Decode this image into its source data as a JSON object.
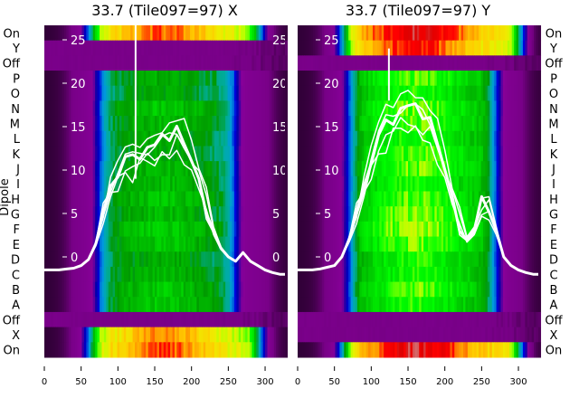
{
  "chart_data": [
    {
      "type": "heatmap",
      "title": "33.7 (Tile097=97) X",
      "ylabel": "Dipole",
      "xlabel": "",
      "xlim": [
        0,
        330
      ],
      "x_ticks": [
        "0",
        "50",
        "100",
        "150",
        "200",
        "250",
        "300"
      ],
      "rows": [
        "On",
        "Y",
        "Off",
        "P",
        "O",
        "N",
        "M",
        "L",
        "K",
        "J",
        "I",
        "H",
        "G",
        "F",
        "E",
        "D",
        "C",
        "B",
        "A",
        "Off",
        "X",
        "On"
      ],
      "row_peak_levels": [
        0.82,
        0.04,
        0.04,
        0.48,
        0.47,
        0.52,
        0.5,
        0.48,
        0.47,
        0.5,
        0.5,
        0.52,
        0.5,
        0.53,
        0.52,
        0.48,
        0.5,
        0.52,
        0.52,
        0.04,
        0.8,
        0.83
      ],
      "overlay_ylim": [
        -2,
        27
      ],
      "overlay_ticks": [
        "0",
        "5",
        "10",
        "15",
        "20",
        "25"
      ],
      "overlay_line": {
        "x": [
          0,
          10,
          20,
          30,
          40,
          50,
          60,
          70,
          80,
          90,
          100,
          110,
          120,
          130,
          140,
          150,
          160,
          170,
          180,
          190,
          200,
          210,
          220,
          230,
          240,
          250,
          260,
          270,
          280,
          290,
          300,
          310,
          320,
          330
        ],
        "y": [
          -1.5,
          -1.5,
          -1.5,
          -1.4,
          -1.3,
          -1,
          -0.3,
          1.5,
          5,
          8,
          9.5,
          10.5,
          11,
          12,
          12,
          12.5,
          13,
          13.5,
          14,
          13,
          11,
          9,
          6,
          3,
          1,
          0,
          -0.5,
          0.5,
          -0.5,
          -1,
          -1.5,
          -1.8,
          -2,
          -2
        ],
        "variants": [
          0.85,
          0.92,
          1,
          1.07,
          1.15
        ],
        "spike": {
          "x": 124,
          "y_top": 27,
          "y_bottom": 9
        }
      }
    },
    {
      "type": "heatmap",
      "title": "33.7 (Tile097=97) Y",
      "xlabel": "",
      "xlim": [
        0,
        330
      ],
      "x_ticks": [
        "0",
        "50",
        "100",
        "150",
        "200",
        "250",
        "300"
      ],
      "rows": [
        "On",
        "Y",
        "Off",
        "P",
        "O",
        "N",
        "M",
        "L",
        "K",
        "J",
        "I",
        "H",
        "G",
        "F",
        "E",
        "D",
        "C",
        "B",
        "A",
        "Off",
        "X",
        "On"
      ],
      "row_peak_levels": [
        0.9,
        0.86,
        0.04,
        0.62,
        0.6,
        0.63,
        0.62,
        0.6,
        0.62,
        0.63,
        0.6,
        0.62,
        0.64,
        0.65,
        0.63,
        0.6,
        0.6,
        0.62,
        0.6,
        0.04,
        0.04,
        0.9
      ],
      "overlay_ylim": [
        -2,
        27
      ],
      "overlay_ticks": [
        "0",
        "5",
        "10",
        "15",
        "20",
        "25"
      ],
      "overlay_line": {
        "x": [
          0,
          10,
          20,
          30,
          40,
          50,
          60,
          70,
          80,
          90,
          100,
          110,
          120,
          130,
          140,
          150,
          160,
          170,
          180,
          190,
          200,
          210,
          220,
          230,
          240,
          250,
          260,
          270,
          280,
          290,
          300,
          310,
          320,
          330
        ],
        "y": [
          -1.5,
          -1.5,
          -1.5,
          -1.4,
          -1.2,
          -1,
          0,
          2,
          5,
          8,
          11,
          13,
          15,
          16,
          16.5,
          17,
          16.5,
          16,
          15,
          13,
          10,
          7,
          4,
          2,
          3,
          6,
          5,
          3,
          0,
          -1,
          -1.5,
          -1.8,
          -2,
          -2
        ],
        "variants": [
          0.85,
          0.92,
          1,
          1.07,
          1.15
        ],
        "spike": {
          "x": 124,
          "y_top": 24,
          "y_bottom": 18
        }
      }
    }
  ]
}
